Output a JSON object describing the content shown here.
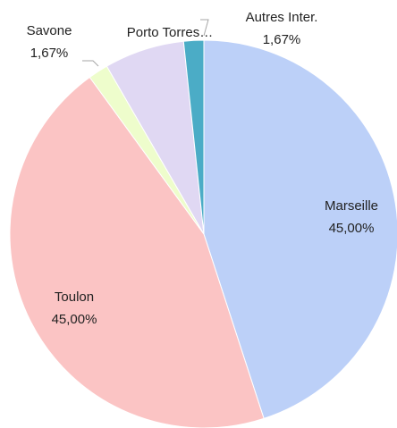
{
  "chart_data": {
    "type": "pie",
    "categories": [
      "Marseille",
      "Toulon",
      "Savone",
      "Porto Torres…",
      "Autres Inter."
    ],
    "values": [
      45,
      45,
      1.67,
      6.67,
      1.67
    ],
    "value_labels": [
      "45,00%",
      "45,00%",
      "1,67%",
      null,
      "1,67%"
    ],
    "colors": [
      "#bcd0f8",
      "#fbc4c4",
      "#eefdcc",
      "#e0d8f3",
      "#4bacc6"
    ]
  }
}
